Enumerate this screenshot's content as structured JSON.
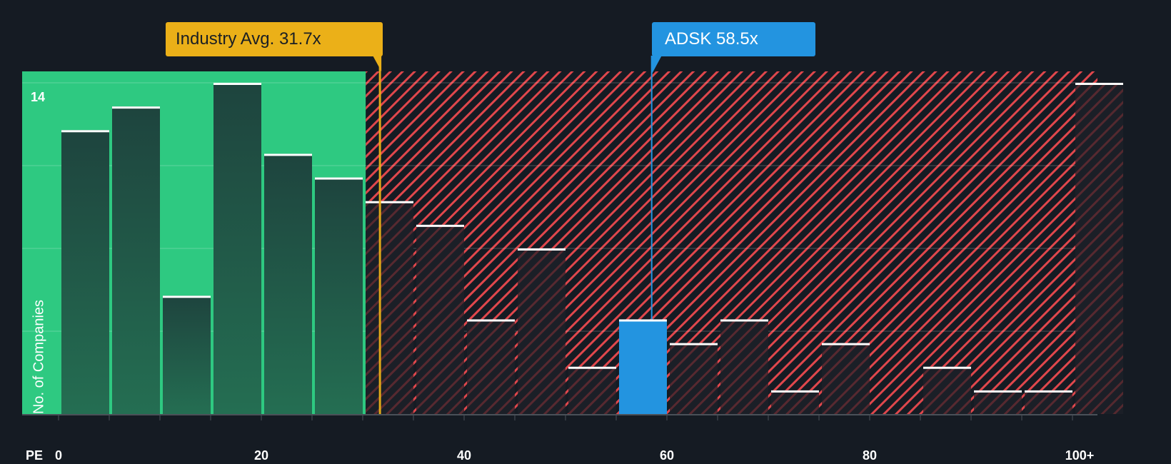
{
  "chart_data": {
    "type": "bar",
    "title": "",
    "xlabel": "PE",
    "ylabel": "No. of Companies",
    "x_ticks": [
      "0",
      "20",
      "40",
      "60",
      "80",
      "100+"
    ],
    "y_max_label": "14",
    "ylim": [
      0,
      14
    ],
    "bin_width": 5,
    "categories": [
      "0-5",
      "5-10",
      "10-15",
      "15-20",
      "20-25",
      "25-30",
      "30-35",
      "35-40",
      "40-45",
      "45-50",
      "50-55",
      "55-60",
      "60-65",
      "65-70",
      "70-75",
      "75-80",
      "80-85",
      "85-90",
      "90-95",
      "95-100",
      "100+"
    ],
    "values": [
      12,
      13,
      5,
      14,
      11,
      10,
      9,
      8,
      4,
      7,
      2,
      4,
      3,
      4,
      1,
      3,
      0,
      2,
      1,
      1,
      14
    ],
    "highlight_bin": "55-60",
    "industry_avg": 31.7,
    "company_value": 58.5,
    "fair_region_end": 30.3,
    "annotations": [
      {
        "label": "Industry Avg. 31.7x",
        "x": 31.7
      },
      {
        "label": "ADSK 58.5x",
        "x": 58.5
      }
    ],
    "grid": true,
    "legend": null
  },
  "callouts": {
    "industry": "Industry Avg. 31.7x",
    "company": "ADSK 58.5x"
  },
  "axis": {
    "x_title": "PE",
    "y_title": "No. of Companies",
    "y_max": "14",
    "ticks": [
      {
        "label": "0",
        "value": 0
      },
      {
        "label": "20",
        "value": 20
      },
      {
        "label": "40",
        "value": 40
      },
      {
        "label": "60",
        "value": 60
      },
      {
        "label": "80",
        "value": 80
      },
      {
        "label": "100+",
        "value": 100
      }
    ]
  },
  "colors": {
    "background": "#151b23",
    "fair_region": "#2ec981",
    "fair_bar": "#1f4a40",
    "over_hatch": "#e0474c",
    "company_bar": "#2394e0",
    "industry": "#ebb018",
    "bar_cap": "#ffffff"
  }
}
